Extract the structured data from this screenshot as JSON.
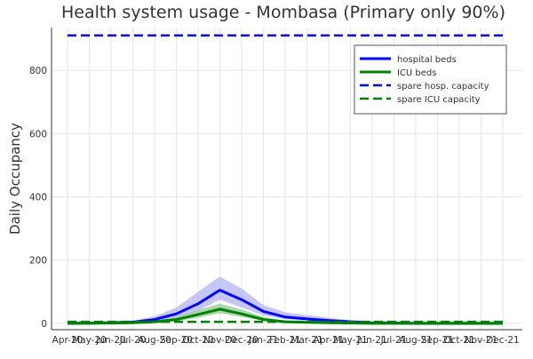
{
  "chart_data": {
    "type": "line",
    "title": "Health system usage - Mombasa (Primary only 90%)",
    "xlabel": "",
    "ylabel": "Daily Occupancy",
    "ylim": [
      -20,
      935
    ],
    "yticks": [
      0,
      200,
      400,
      600,
      800
    ],
    "grid": true,
    "legend_position": "top-right",
    "months": [
      "Apr-20",
      "May-20",
      "Jun-20",
      "Jul-20",
      "Aug-20",
      "Sep-20",
      "Oct-20",
      "Nov-20",
      "Dec-20",
      "Jan-21",
      "Feb-21",
      "Mar-21",
      "Apr-21",
      "May-21",
      "Jun-21",
      "Jul-21",
      "Aug-21",
      "Sep-21",
      "Oct-21",
      "Nov-21",
      "Dec-21"
    ],
    "series": [
      {
        "name": "hospital beds",
        "style": "solid",
        "color": "#0000ff",
        "band_color": "#b3b3f5",
        "x": [
          "Apr-20",
          "May-20",
          "Jun-20",
          "Jul-20",
          "Aug-20",
          "Sep-20",
          "Oct-20",
          "Nov-20",
          "Dec-20",
          "Jan-21",
          "Feb-21",
          "Mar-21",
          "Apr-21",
          "May-21",
          "Jun-21",
          "Jul-21",
          "Aug-21",
          "Sep-21",
          "Oct-21",
          "Nov-21",
          "Dec-21"
        ],
        "values": [
          0,
          1,
          2,
          4,
          12,
          30,
          62,
          105,
          75,
          38,
          20,
          14,
          9,
          5,
          2,
          1,
          0,
          0,
          0,
          0,
          0
        ],
        "lower": [
          0,
          0,
          1,
          2,
          6,
          18,
          40,
          75,
          50,
          25,
          13,
          9,
          5,
          2,
          1,
          0,
          0,
          0,
          0,
          0,
          0
        ],
        "upper": [
          0,
          2,
          4,
          8,
          22,
          50,
          100,
          148,
          110,
          58,
          35,
          26,
          18,
          10,
          5,
          2,
          1,
          1,
          0,
          0,
          0
        ]
      },
      {
        "name": "ICU beds",
        "style": "solid",
        "color": "#008000",
        "band_color": "#8fc98f",
        "x": [
          "Apr-20",
          "May-20",
          "Jun-20",
          "Jul-20",
          "Aug-20",
          "Sep-20",
          "Oct-20",
          "Nov-20",
          "Dec-20",
          "Jan-21",
          "Feb-21",
          "Mar-21",
          "Apr-21",
          "May-21",
          "Jun-21",
          "Jul-21",
          "Aug-21",
          "Sep-21",
          "Oct-21",
          "Nov-21",
          "Dec-21"
        ],
        "values": [
          0,
          0,
          1,
          2,
          5,
          12,
          28,
          45,
          30,
          12,
          5,
          3,
          2,
          1,
          0,
          0,
          0,
          0,
          0,
          0,
          0
        ],
        "lower": [
          0,
          0,
          0,
          1,
          3,
          7,
          18,
          32,
          20,
          8,
          3,
          2,
          1,
          0,
          0,
          0,
          0,
          0,
          0,
          0,
          0
        ],
        "upper": [
          0,
          1,
          2,
          4,
          9,
          20,
          42,
          62,
          44,
          20,
          9,
          6,
          4,
          2,
          1,
          0,
          0,
          0,
          0,
          0,
          0
        ]
      },
      {
        "name": "spare hosp. capacity",
        "style": "dashed",
        "color": "#0000ff",
        "x": [
          "Apr-20",
          "Dec-21"
        ],
        "values": [
          910,
          910
        ]
      },
      {
        "name": "spare ICU capacity",
        "style": "dashed",
        "color": "#008000",
        "x": [
          "Apr-20",
          "Dec-21"
        ],
        "values": [
          5,
          5
        ]
      }
    ]
  }
}
